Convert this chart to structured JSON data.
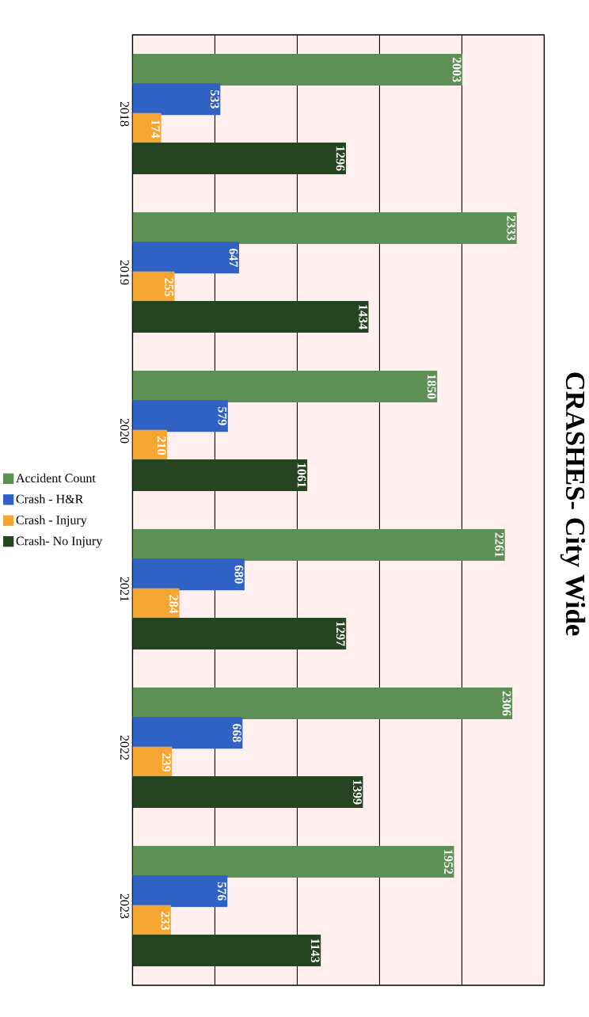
{
  "chart_data": {
    "type": "bar",
    "orientation": "horizontal",
    "title": "CRASHES- City Wide",
    "categories": [
      "2018",
      "2019",
      "2020",
      "2021",
      "2022",
      "2023"
    ],
    "series": [
      {
        "name": "Accident Count",
        "color": "#5e8f55",
        "values": [
          2003,
          2333,
          1850,
          2261,
          2306,
          1952
        ]
      },
      {
        "name": "Crash - H&R",
        "color": "#2f62c4",
        "values": [
          533,
          647,
          579,
          680,
          668,
          576
        ]
      },
      {
        "name": "Crash - Injury",
        "color": "#f5a531",
        "values": [
          174,
          255,
          210,
          284,
          239,
          233
        ]
      },
      {
        "name": "Crash- No Injury",
        "color": "#24451f",
        "values": [
          1296,
          1434,
          1061,
          1297,
          1399,
          1143
        ]
      }
    ],
    "xlim": [
      0,
      2500
    ],
    "xticks": [
      {
        "value": 0,
        "label": null
      },
      {
        "value": 500,
        "label": null
      },
      {
        "value": 1000,
        "label": null
      },
      {
        "value": 1500,
        "label": null
      },
      {
        "value": 2000,
        "label": null
      },
      {
        "value": 2500,
        "label": null
      }
    ],
    "tick_labels": "y",
    "grid": "x",
    "legend": "left",
    "data_labels": true
  }
}
